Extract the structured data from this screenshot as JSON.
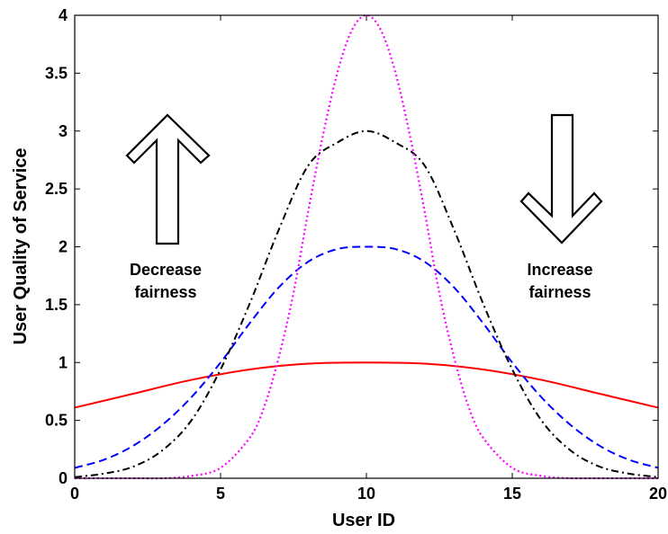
{
  "chart_data": {
    "type": "line",
    "xlabel": "User ID",
    "ylabel": "User Quality of Service",
    "xlim": [
      0,
      20
    ],
    "ylim": [
      0,
      4
    ],
    "xticks": [
      "0",
      "5",
      "10",
      "15",
      "20"
    ],
    "yticks": [
      "0",
      "0.5",
      "1",
      "1.5",
      "2",
      "2.5",
      "3",
      "3.5",
      "4"
    ],
    "grid": false,
    "series": [
      {
        "color": "#ff0000",
        "style": "solid",
        "x": [
          0,
          2,
          4,
          6,
          8,
          10,
          12,
          14,
          16,
          18,
          20
        ],
        "y": [
          0.61,
          0.73,
          0.85,
          0.94,
          0.99,
          1.0,
          0.99,
          0.94,
          0.85,
          0.73,
          0.61
        ]
      },
      {
        "color": "#0000ff",
        "style": "dashed",
        "x": [
          0,
          1,
          2,
          3,
          4,
          5,
          6,
          7,
          8,
          9,
          10,
          11,
          12,
          13,
          14,
          15,
          16,
          17,
          18,
          19,
          20
        ],
        "y": [
          0.09,
          0.16,
          0.28,
          0.46,
          0.7,
          1.0,
          1.34,
          1.65,
          1.87,
          1.98,
          2.0,
          1.98,
          1.87,
          1.65,
          1.34,
          1.0,
          0.7,
          0.46,
          0.28,
          0.16,
          0.09
        ]
      },
      {
        "color": "#000000",
        "style": "dashdot",
        "x": [
          0,
          1,
          2,
          3,
          4,
          5,
          6,
          7,
          8,
          9,
          10,
          11,
          12,
          13,
          14,
          15,
          16,
          17,
          18,
          19,
          20
        ],
        "y": [
          0.01,
          0.04,
          0.1,
          0.24,
          0.5,
          0.94,
          1.51,
          2.15,
          2.7,
          2.9,
          3.0,
          2.9,
          2.7,
          2.15,
          1.51,
          0.94,
          0.5,
          0.24,
          0.1,
          0.04,
          0.01
        ]
      },
      {
        "color": "#ff00ff",
        "style": "dotted",
        "x": [
          0,
          2,
          3,
          4,
          5,
          6,
          6.5,
          7,
          7.5,
          8,
          8.5,
          9,
          9.5,
          10,
          10.5,
          11,
          11.5,
          12,
          12.5,
          13,
          13.5,
          14,
          15,
          16,
          17,
          18,
          20
        ],
        "y": [
          0,
          0,
          0,
          0.02,
          0.09,
          0.35,
          0.62,
          1.05,
          1.6,
          2.3,
          2.95,
          3.5,
          3.87,
          4.0,
          3.87,
          3.5,
          2.95,
          2.3,
          1.6,
          1.05,
          0.62,
          0.35,
          0.09,
          0.02,
          0,
          0,
          0
        ]
      }
    ],
    "annotations": [
      {
        "id": "decrease",
        "lines": [
          "Decrease",
          "fairness"
        ],
        "arrow": "up"
      },
      {
        "id": "increase",
        "lines": [
          "Increase",
          "fairness"
        ],
        "arrow": "down"
      }
    ]
  }
}
